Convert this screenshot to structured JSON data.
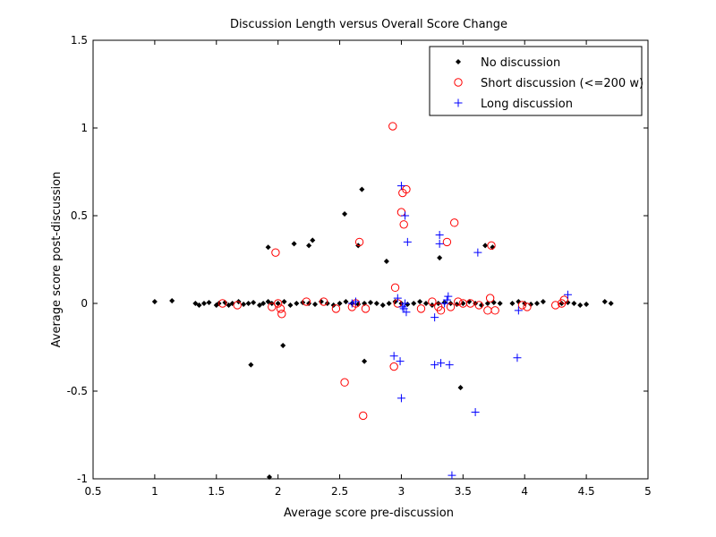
{
  "chart_data": {
    "type": "scatter",
    "title": "Discussion Length versus Overall Score Change",
    "xlabel": "Average score pre-discussion",
    "ylabel": "Average score post-discussion",
    "xlim": [
      0.5,
      5
    ],
    "ylim": [
      -1,
      1.5
    ],
    "xticks": [
      0.5,
      1,
      1.5,
      2,
      2.5,
      3,
      3.5,
      4,
      4.5,
      5
    ],
    "yticks": [
      -1,
      -0.5,
      0,
      0.5,
      1,
      1.5
    ],
    "xtick_labels": [
      "0.5",
      "1",
      "1.5",
      "2",
      "2.5",
      "3",
      "3.5",
      "4",
      "4.5",
      "5"
    ],
    "ytick_labels": [
      "-1",
      "-0.5",
      "0",
      "0.5",
      "1",
      "1.5"
    ],
    "grid": false,
    "legend_position": "top-right",
    "series": [
      {
        "name": "No discussion",
        "marker": "dot",
        "color": "#000000",
        "points": [
          [
            1.0,
            0.01
          ],
          [
            1.14,
            0.015
          ],
          [
            1.33,
            0.0
          ],
          [
            1.36,
            -0.01
          ],
          [
            1.4,
            0.0
          ],
          [
            1.44,
            0.005
          ],
          [
            1.5,
            -0.01
          ],
          [
            1.52,
            0.0
          ],
          [
            1.57,
            0.005
          ],
          [
            1.6,
            -0.01
          ],
          [
            1.63,
            0.0
          ],
          [
            1.68,
            0.01
          ],
          [
            1.72,
            -0.005
          ],
          [
            1.76,
            0.0
          ],
          [
            1.8,
            0.005
          ],
          [
            1.85,
            -0.01
          ],
          [
            1.88,
            0.0
          ],
          [
            1.92,
            0.01
          ],
          [
            1.95,
            0.0
          ],
          [
            2.0,
            0.0
          ],
          [
            2.05,
            0.01
          ],
          [
            2.1,
            -0.01
          ],
          [
            2.15,
            0.0
          ],
          [
            2.2,
            0.005
          ],
          [
            2.25,
            0.0
          ],
          [
            2.3,
            -0.005
          ],
          [
            2.35,
            0.01
          ],
          [
            2.4,
            0.0
          ],
          [
            2.45,
            -0.01
          ],
          [
            2.5,
            0.0
          ],
          [
            2.55,
            0.01
          ],
          [
            2.6,
            0.0
          ],
          [
            2.65,
            -0.005
          ],
          [
            2.7,
            0.0
          ],
          [
            2.75,
            0.005
          ],
          [
            2.8,
            0.0
          ],
          [
            2.85,
            -0.01
          ],
          [
            2.9,
            0.0
          ],
          [
            2.95,
            0.01
          ],
          [
            3.0,
            0.0
          ],
          [
            3.05,
            -0.005
          ],
          [
            3.1,
            0.0
          ],
          [
            3.15,
            0.01
          ],
          [
            3.2,
            0.0
          ],
          [
            3.25,
            -0.01
          ],
          [
            3.3,
            0.0
          ],
          [
            3.35,
            0.005
          ],
          [
            3.4,
            0.0
          ],
          [
            3.45,
            -0.005
          ],
          [
            3.5,
            0.0
          ],
          [
            3.55,
            0.01
          ],
          [
            3.6,
            0.0
          ],
          [
            3.65,
            -0.01
          ],
          [
            3.7,
            0.0
          ],
          [
            3.75,
            0.005
          ],
          [
            3.8,
            0.0
          ],
          [
            3.9,
            0.0
          ],
          [
            3.95,
            0.01
          ],
          [
            4.0,
            0.0
          ],
          [
            4.05,
            -0.005
          ],
          [
            4.1,
            0.0
          ],
          [
            4.15,
            0.01
          ],
          [
            4.3,
            0.0
          ],
          [
            4.35,
            0.005
          ],
          [
            4.4,
            0.0
          ],
          [
            4.45,
            -0.01
          ],
          [
            4.5,
            -0.005
          ],
          [
            4.65,
            0.01
          ],
          [
            4.7,
            0.0
          ],
          [
            1.78,
            -0.35
          ],
          [
            1.92,
            0.32
          ],
          [
            1.93,
            -0.99
          ],
          [
            2.04,
            -0.24
          ],
          [
            2.13,
            0.34
          ],
          [
            2.25,
            0.33
          ],
          [
            2.28,
            0.36
          ],
          [
            2.54,
            0.51
          ],
          [
            2.65,
            0.33
          ],
          [
            2.68,
            0.65
          ],
          [
            2.7,
            -0.33
          ],
          [
            2.88,
            0.24
          ],
          [
            3.31,
            0.26
          ],
          [
            3.48,
            -0.48
          ],
          [
            3.68,
            0.33
          ],
          [
            3.74,
            0.32
          ]
        ]
      },
      {
        "name": "Short discussion (<=200 w)",
        "marker": "circle",
        "color": "#ff0000",
        "points": [
          [
            1.55,
            0.0
          ],
          [
            1.67,
            -0.01
          ],
          [
            1.95,
            -0.02
          ],
          [
            1.98,
            0.29
          ],
          [
            2.0,
            0.0
          ],
          [
            2.02,
            -0.03
          ],
          [
            2.03,
            -0.06
          ],
          [
            2.23,
            0.01
          ],
          [
            2.37,
            0.01
          ],
          [
            2.47,
            -0.03
          ],
          [
            2.54,
            -0.45
          ],
          [
            2.6,
            -0.02
          ],
          [
            2.63,
            0.0
          ],
          [
            2.66,
            0.35
          ],
          [
            2.69,
            -0.64
          ],
          [
            2.71,
            -0.03
          ],
          [
            2.93,
            1.01
          ],
          [
            2.94,
            -0.36
          ],
          [
            2.95,
            0.09
          ],
          [
            2.97,
            0.0
          ],
          [
            3.0,
            0.52
          ],
          [
            3.01,
            0.63
          ],
          [
            3.02,
            0.45
          ],
          [
            3.04,
            0.65
          ],
          [
            3.16,
            -0.03
          ],
          [
            3.25,
            0.01
          ],
          [
            3.3,
            -0.02
          ],
          [
            3.32,
            -0.04
          ],
          [
            3.37,
            0.35
          ],
          [
            3.4,
            -0.02
          ],
          [
            3.43,
            0.46
          ],
          [
            3.46,
            0.01
          ],
          [
            3.5,
            0.0
          ],
          [
            3.56,
            0.0
          ],
          [
            3.63,
            -0.01
          ],
          [
            3.7,
            -0.04
          ],
          [
            3.72,
            0.03
          ],
          [
            3.73,
            0.33
          ],
          [
            3.76,
            -0.04
          ],
          [
            3.98,
            -0.01
          ],
          [
            4.02,
            -0.02
          ],
          [
            4.25,
            -0.01
          ],
          [
            4.3,
            0.0
          ],
          [
            4.32,
            0.02
          ]
        ]
      },
      {
        "name": "Long discussion",
        "marker": "plus",
        "color": "#0000ff",
        "points": [
          [
            2.6,
            0.0
          ],
          [
            2.63,
            0.01
          ],
          [
            2.94,
            -0.3
          ],
          [
            2.97,
            0.03
          ],
          [
            2.99,
            -0.33
          ],
          [
            3.0,
            -0.54
          ],
          [
            3.0,
            0.67
          ],
          [
            3.01,
            -0.02
          ],
          [
            3.02,
            -0.03
          ],
          [
            3.03,
            0.0
          ],
          [
            3.03,
            0.5
          ],
          [
            3.04,
            -0.05
          ],
          [
            3.05,
            0.35
          ],
          [
            3.27,
            -0.08
          ],
          [
            3.27,
            -0.35
          ],
          [
            3.31,
            0.39
          ],
          [
            3.31,
            0.34
          ],
          [
            3.32,
            -0.34
          ],
          [
            3.35,
            0.0
          ],
          [
            3.37,
            0.02
          ],
          [
            3.38,
            0.04
          ],
          [
            3.39,
            -0.35
          ],
          [
            3.41,
            -0.98
          ],
          [
            3.6,
            -0.62
          ],
          [
            3.62,
            0.29
          ],
          [
            3.94,
            -0.31
          ],
          [
            3.95,
            -0.04
          ],
          [
            4.35,
            0.05
          ]
        ]
      }
    ]
  }
}
